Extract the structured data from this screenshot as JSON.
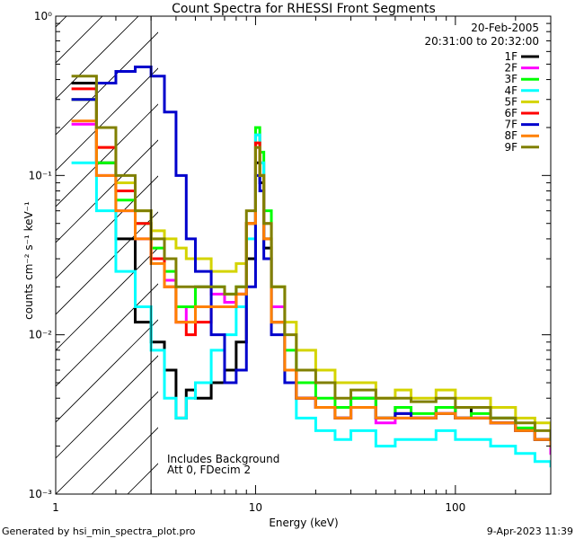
{
  "chart_data": {
    "type": "line",
    "title": "Count Spectra for RHESSI Front Segments",
    "xlabel": "Energy (keV)",
    "ylabel": "counts cm⁻² s⁻¹ keV⁻¹",
    "xscale": "log",
    "yscale": "log",
    "xlim": [
      1,
      300
    ],
    "ylim": [
      0.001,
      1
    ],
    "x_ticks": [
      "1",
      "10",
      "100"
    ],
    "y_ticks": [
      "10⁻³",
      "10⁻²",
      "10⁻¹",
      "10⁰"
    ],
    "grid": false,
    "legend_position": "top-right",
    "date": "20-Feb-2005",
    "time_range": "20:31:00 to 20:32:00",
    "shaded_region_xmax": 3,
    "annotations": [
      "Includes Background",
      "Att 0, FDecim 2"
    ],
    "footer_left": "Generated by hsi_min_spectra_plot.pro",
    "footer_right": "9-Apr-2023 11:39",
    "series": [
      {
        "name": "1F",
        "color": "#000000",
        "x": [
          1.2,
          1.6,
          2,
          2.5,
          3,
          3.5,
          4,
          4.5,
          5,
          6,
          7,
          8,
          9,
          10,
          10.5,
          11,
          12,
          14,
          16,
          20,
          25,
          30,
          40,
          50,
          60,
          80,
          100,
          120,
          150,
          200,
          250,
          300
        ],
        "y": [
          0.38,
          0.12,
          0.04,
          0.012,
          0.009,
          0.006,
          0.003,
          0.0045,
          0.004,
          0.005,
          0.006,
          0.009,
          0.03,
          0.12,
          0.09,
          0.035,
          0.012,
          0.006,
          0.004,
          0.0035,
          0.003,
          0.004,
          0.003,
          0.0035,
          0.003,
          0.0035,
          0.003,
          0.0035,
          0.003,
          0.0025,
          0.0022,
          0.002
        ]
      },
      {
        "name": "2F",
        "color": "#ff00ff",
        "x": [
          1.2,
          1.6,
          2,
          2.5,
          3,
          3.5,
          4,
          4.5,
          5,
          6,
          7,
          8,
          9,
          10,
          10.5,
          11,
          12,
          14,
          16,
          20,
          25,
          30,
          40,
          50,
          60,
          80,
          100,
          120,
          150,
          200,
          250,
          300
        ],
        "y": [
          0.21,
          0.1,
          0.06,
          0.04,
          0.03,
          0.022,
          0.012,
          0.015,
          0.02,
          0.018,
          0.016,
          0.018,
          0.05,
          0.18,
          0.12,
          0.05,
          0.015,
          0.006,
          0.004,
          0.0035,
          0.003,
          0.0035,
          0.0028,
          0.003,
          0.003,
          0.0032,
          0.003,
          0.003,
          0.0028,
          0.0025,
          0.0022,
          0.0018
        ]
      },
      {
        "name": "3F",
        "color": "#00ff00",
        "x": [
          1.2,
          1.6,
          2,
          2.5,
          3,
          3.5,
          4,
          4.5,
          5,
          6,
          7,
          8,
          9,
          10,
          10.5,
          11,
          12,
          14,
          16,
          20,
          25,
          30,
          40,
          50,
          60,
          80,
          100,
          120,
          150,
          200,
          250,
          300
        ],
        "y": [
          0.3,
          0.12,
          0.07,
          0.05,
          0.035,
          0.025,
          0.015,
          0.015,
          0.02,
          0.02,
          0.018,
          0.02,
          0.05,
          0.2,
          0.14,
          0.06,
          0.02,
          0.008,
          0.005,
          0.004,
          0.0035,
          0.004,
          0.003,
          0.0035,
          0.0032,
          0.0035,
          0.003,
          0.0032,
          0.003,
          0.0026,
          0.0022,
          0.002
        ]
      },
      {
        "name": "4F",
        "color": "#00ffff",
        "x": [
          1.2,
          1.6,
          2,
          2.5,
          3,
          3.5,
          4,
          4.5,
          5,
          6,
          7,
          8,
          9,
          10,
          10.5,
          11,
          12,
          14,
          16,
          20,
          25,
          30,
          40,
          50,
          60,
          80,
          100,
          120,
          150,
          200,
          250,
          300
        ],
        "y": [
          0.12,
          0.06,
          0.025,
          0.015,
          0.008,
          0.004,
          0.003,
          0.004,
          0.005,
          0.008,
          0.01,
          0.015,
          0.04,
          0.18,
          0.12,
          0.04,
          0.012,
          0.005,
          0.003,
          0.0025,
          0.0022,
          0.0025,
          0.002,
          0.0022,
          0.0022,
          0.0025,
          0.0022,
          0.0022,
          0.002,
          0.0018,
          0.0016,
          0.0015
        ]
      },
      {
        "name": "5F",
        "color": "#d4d400",
        "x": [
          1.2,
          1.6,
          2,
          2.5,
          3,
          3.5,
          4,
          4.5,
          5,
          6,
          7,
          8,
          9,
          10,
          10.5,
          11,
          12,
          14,
          16,
          20,
          25,
          30,
          40,
          50,
          60,
          80,
          100,
          120,
          150,
          200,
          250,
          300
        ],
        "y": [
          0.3,
          0.15,
          0.09,
          0.06,
          0.045,
          0.04,
          0.035,
          0.03,
          0.03,
          0.025,
          0.025,
          0.028,
          0.05,
          0.16,
          0.1,
          0.05,
          0.02,
          0.012,
          0.008,
          0.006,
          0.005,
          0.005,
          0.004,
          0.0045,
          0.004,
          0.0045,
          0.004,
          0.004,
          0.0035,
          0.003,
          0.0028,
          0.0025
        ]
      },
      {
        "name": "6F",
        "color": "#ff0000",
        "x": [
          1.2,
          1.6,
          2,
          2.5,
          3,
          3.5,
          4,
          4.5,
          5,
          6,
          7,
          8,
          9,
          10,
          10.5,
          11,
          12,
          14,
          16,
          20,
          25,
          30,
          40,
          50,
          60,
          80,
          100,
          120,
          150,
          200,
          250,
          300
        ],
        "y": [
          0.35,
          0.15,
          0.08,
          0.05,
          0.03,
          0.02,
          0.012,
          0.01,
          0.012,
          0.015,
          0.015,
          0.018,
          0.05,
          0.16,
          0.1,
          0.04,
          0.012,
          0.006,
          0.004,
          0.0035,
          0.003,
          0.0035,
          0.003,
          0.0032,
          0.003,
          0.0032,
          0.003,
          0.003,
          0.0028,
          0.0025,
          0.0022,
          0.002
        ]
      },
      {
        "name": "7F",
        "color": "#0000cc",
        "x": [
          1.2,
          1.6,
          2,
          2.5,
          3,
          3.5,
          4,
          4.5,
          5,
          6,
          7,
          8,
          9,
          10,
          10.5,
          11,
          12,
          14,
          16,
          20,
          25,
          30,
          40,
          50,
          60,
          80,
          100,
          120,
          150,
          200,
          250,
          300
        ],
        "y": [
          0.3,
          0.38,
          0.45,
          0.48,
          0.42,
          0.25,
          0.1,
          0.04,
          0.025,
          0.01,
          0.005,
          0.006,
          0.02,
          0.1,
          0.08,
          0.03,
          0.01,
          0.005,
          0.004,
          0.0035,
          0.003,
          0.0035,
          0.003,
          0.0032,
          0.003,
          0.0032,
          0.003,
          0.003,
          0.0028,
          0.0025,
          0.0022,
          0.002
        ]
      },
      {
        "name": "8F",
        "color": "#ff8000",
        "x": [
          1.2,
          1.6,
          2,
          2.5,
          3,
          3.5,
          4,
          4.5,
          5,
          6,
          7,
          8,
          9,
          10,
          10.5,
          11,
          12,
          14,
          16,
          20,
          25,
          30,
          40,
          50,
          60,
          80,
          100,
          120,
          150,
          200,
          250,
          300
        ],
        "y": [
          0.22,
          0.1,
          0.06,
          0.04,
          0.028,
          0.02,
          0.012,
          0.012,
          0.015,
          0.015,
          0.015,
          0.018,
          0.05,
          0.15,
          0.1,
          0.04,
          0.012,
          0.006,
          0.004,
          0.0035,
          0.003,
          0.0035,
          0.003,
          0.003,
          0.003,
          0.0032,
          0.003,
          0.003,
          0.0028,
          0.0025,
          0.0022,
          0.002
        ]
      },
      {
        "name": "9F",
        "color": "#808000",
        "x": [
          1.2,
          1.6,
          2,
          2.5,
          3,
          3.5,
          4,
          4.5,
          5,
          6,
          7,
          8,
          9,
          10,
          10.5,
          11,
          12,
          14,
          16,
          20,
          25,
          30,
          40,
          50,
          60,
          80,
          100,
          120,
          150,
          200,
          250,
          300
        ],
        "y": [
          0.42,
          0.2,
          0.1,
          0.06,
          0.04,
          0.03,
          0.02,
          0.02,
          0.02,
          0.02,
          0.018,
          0.02,
          0.06,
          0.15,
          0.1,
          0.05,
          0.02,
          0.01,
          0.006,
          0.005,
          0.004,
          0.0045,
          0.004,
          0.004,
          0.0038,
          0.004,
          0.0035,
          0.0035,
          0.003,
          0.0028,
          0.0025,
          0.0022
        ]
      }
    ]
  }
}
